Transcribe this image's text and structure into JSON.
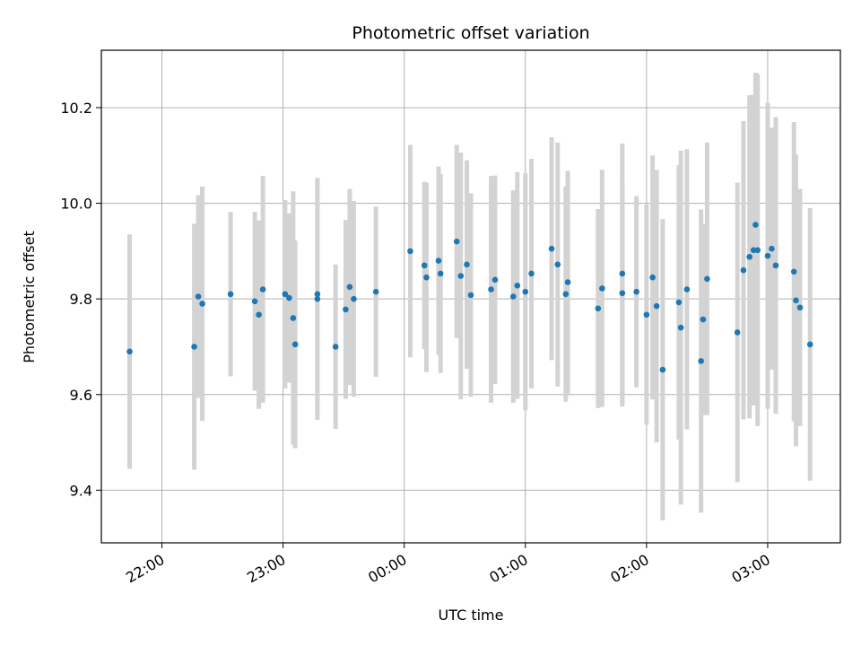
{
  "chart_data": {
    "type": "scatter",
    "title": "Photometric offset variation",
    "xlabel": "UTC time",
    "ylabel": "Photometric offset",
    "x_ticks": [
      "22:00",
      "23:00",
      "00:00",
      "01:00",
      "02:00",
      "03:00"
    ],
    "y_ticks": [
      "9.4",
      "9.6",
      "9.8",
      "10.0",
      "10.2"
    ],
    "ylim": [
      9.29,
      10.32
    ],
    "xlim": [
      "21:30",
      "03:36"
    ],
    "grid": true,
    "marker_color": "#1f77b4",
    "errorbar_color": "#d3d3d3",
    "series": [
      {
        "x": [
          "21:44",
          "22:16",
          "22:18",
          "22:20",
          "22:34",
          "22:46",
          "22:48",
          "22:50",
          "23:01",
          "23:03",
          "23:05",
          "23:06",
          "23:17",
          "23:17",
          "23:26",
          "23:31",
          "23:33",
          "23:35",
          "23:46",
          "00:03",
          "00:10",
          "00:11",
          "00:17",
          "00:18",
          "00:26",
          "00:28",
          "00:31",
          "00:33",
          "00:43",
          "00:45",
          "00:54",
          "00:56",
          "01:00",
          "01:03",
          "01:13",
          "01:16",
          "01:20",
          "01:21",
          "01:36",
          "01:38",
          "01:48",
          "01:48",
          "01:55",
          "02:00",
          "02:03",
          "02:05",
          "02:08",
          "02:16",
          "02:17",
          "02:20",
          "02:27",
          "02:28",
          "02:30",
          "02:45",
          "02:48",
          "02:51",
          "02:53",
          "02:54",
          "02:55",
          "03:00",
          "03:02",
          "03:04",
          "03:13",
          "03:14",
          "03:16",
          "03:21"
        ],
        "y": [
          9.69,
          9.7,
          9.805,
          9.79,
          9.81,
          9.795,
          9.767,
          9.82,
          9.81,
          9.802,
          9.76,
          9.705,
          9.81,
          9.8,
          9.7,
          9.778,
          9.825,
          9.8,
          9.815,
          9.9,
          9.87,
          9.845,
          9.88,
          9.853,
          9.92,
          9.848,
          9.872,
          9.808,
          9.82,
          9.84,
          9.805,
          9.828,
          9.815,
          9.853,
          9.905,
          9.872,
          9.81,
          9.835,
          9.78,
          9.822,
          9.812,
          9.853,
          9.815,
          9.767,
          9.845,
          9.785,
          9.652,
          9.793,
          9.74,
          9.82,
          9.67,
          9.757,
          9.842,
          9.73,
          9.86,
          9.888,
          9.902,
          9.955,
          9.902,
          9.89,
          9.905,
          9.87,
          9.857,
          9.797,
          9.782,
          9.705
        ],
        "yerr": [
          0.245,
          0.257,
          0.212,
          0.245,
          0.172,
          0.187,
          0.197,
          0.237,
          0.197,
          0.177,
          0.265,
          0.217,
          0.243,
          0.253,
          0.172,
          0.187,
          0.205,
          0.205,
          0.178,
          0.222,
          0.175,
          0.198,
          0.197,
          0.208,
          0.202,
          0.258,
          0.218,
          0.213,
          0.237,
          0.218,
          0.222,
          0.237,
          0.248,
          0.24,
          0.233,
          0.255,
          0.225,
          0.233,
          0.208,
          0.248,
          0.237,
          0.272,
          0.2,
          0.23,
          0.255,
          0.285,
          0.315,
          0.287,
          0.37,
          0.293,
          0.317,
          0.2,
          0.285,
          0.313,
          0.312,
          0.338,
          0.325,
          0.318,
          0.368,
          0.32,
          0.253,
          0.31,
          0.313,
          0.305,
          0.248,
          0.285
        ]
      }
    ]
  }
}
